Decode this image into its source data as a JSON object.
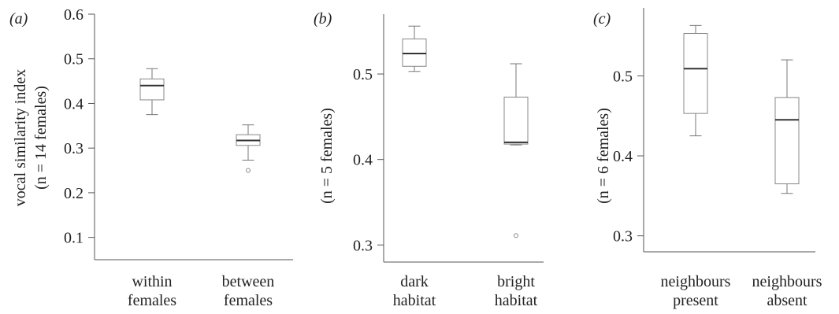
{
  "chart_data": [
    {
      "type": "box",
      "panel_label": "(a)",
      "ylabel_lines": [
        "vocal similarity index",
        "(n = 14 females)"
      ],
      "ylim": [
        0.05,
        0.6
      ],
      "yticks": [
        0.1,
        0.2,
        0.3,
        0.4,
        0.5,
        0.6
      ],
      "ytick_labels": [
        "0.1",
        "0.2",
        "0.3",
        "0.4",
        "0.5",
        "0.6"
      ],
      "categories": [
        {
          "label_lines": [
            "within",
            "females"
          ],
          "min": 0.375,
          "q1": 0.408,
          "median": 0.44,
          "q3": 0.455,
          "max": 0.478,
          "outliers": []
        },
        {
          "label_lines": [
            "between",
            "females"
          ],
          "min": 0.273,
          "q1": 0.306,
          "median": 0.317,
          "q3": 0.33,
          "max": 0.352,
          "outliers": [
            0.25
          ]
        }
      ]
    },
    {
      "type": "box",
      "panel_label": "(b)",
      "ylabel_lines": [
        "(n = 5 females)"
      ],
      "ylim": [
        0.28,
        0.57
      ],
      "yticks": [
        0.3,
        0.4,
        0.5
      ],
      "ytick_labels": [
        "0.3",
        "0.4",
        "0.5"
      ],
      "categories": [
        {
          "label_lines": [
            "dark",
            "habitat"
          ],
          "min": 0.503,
          "q1": 0.509,
          "median": 0.524,
          "q3": 0.541,
          "max": 0.556,
          "outliers": []
        },
        {
          "label_lines": [
            "bright",
            "habitat"
          ],
          "min": 0.417,
          "q1": 0.418,
          "median": 0.42,
          "q3": 0.473,
          "max": 0.512,
          "outliers": [
            0.311
          ]
        }
      ]
    },
    {
      "type": "box",
      "panel_label": "(c)",
      "ylabel_lines": [
        "(n = 6 females)"
      ],
      "ylim": [
        0.28,
        0.585
      ],
      "yticks": [
        0.3,
        0.4,
        0.5
      ],
      "ytick_labels": [
        "0.3",
        "0.4",
        "0.5"
      ],
      "categories": [
        {
          "label_lines": [
            "neighbours",
            "present"
          ],
          "min": 0.425,
          "q1": 0.453,
          "median": 0.509,
          "q3": 0.553,
          "max": 0.563,
          "outliers": []
        },
        {
          "label_lines": [
            "neighbours",
            "absent"
          ],
          "min": 0.353,
          "q1": 0.365,
          "median": 0.445,
          "q3": 0.473,
          "max": 0.52,
          "outliers": []
        }
      ]
    }
  ]
}
